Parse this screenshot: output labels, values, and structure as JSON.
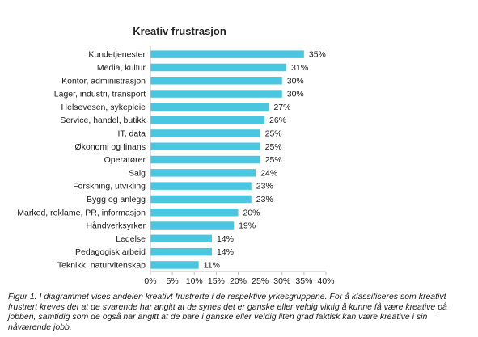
{
  "chart_data": {
    "type": "bar",
    "orientation": "horizontal",
    "title": "Kreativ frustrasjon",
    "categories": [
      "Kundetjenester",
      "Media, kultur",
      "Kontor, administrasjon",
      "Lager, industri, transport",
      "Helsevesen, sykepleie",
      "Service, handel, butikk",
      "IT, data",
      "Økonomi og finans",
      "Operatører",
      "Salg",
      "Forskning, utvikling",
      "Bygg og anlegg",
      "Marked, reklame, PR, informasjon",
      "Håndverksyrker",
      "Ledelse",
      "Pedagogisk arbeid",
      "Teknikk, naturvitenskap"
    ],
    "values": [
      35,
      31,
      30,
      30,
      27,
      26,
      25,
      25,
      25,
      24,
      23,
      23,
      20,
      19,
      14,
      14,
      11
    ],
    "value_labels": [
      "35%",
      "31%",
      "30%",
      "30%",
      "27%",
      "26%",
      "25%",
      "25%",
      "25%",
      "24%",
      "23%",
      "23%",
      "20%",
      "19%",
      "14%",
      "14%",
      "11%"
    ],
    "xlim": [
      0,
      40
    ],
    "xticks": [
      "0%",
      "5%",
      "10%",
      "15%",
      "20%",
      "25%",
      "30%",
      "35%",
      "40%"
    ],
    "xlabel": "",
    "ylabel": "",
    "bar_color": "#4bc6e0",
    "grid": false,
    "legend": "none"
  },
  "caption": "Figur 1. I diagrammet vises andelen kreativt frustrerte i de respektive yrkesgruppene. For å klassifiseres som kreativt frustrert kreves det at de svarende har angitt at de synes det er ganske eller veldig viktig å kunne få være kreative på jobben, samtidig som de også har angitt at de bare i ganske eller veldig liten grad faktisk kan være kreative i sin nåværende jobb."
}
